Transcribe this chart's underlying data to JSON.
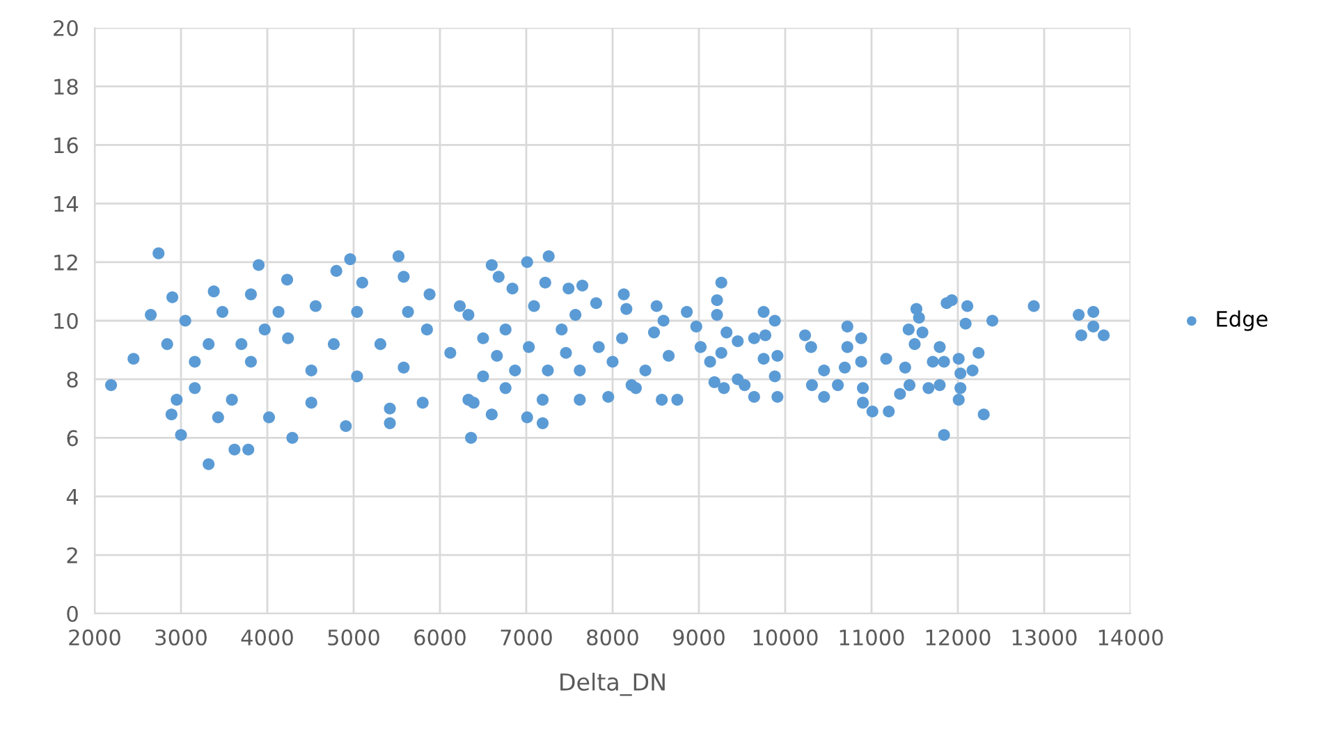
{
  "chart_data": {
    "type": "scatter",
    "xlabel": "Delta_DN",
    "xlim": [
      2000,
      14000
    ],
    "xticks": [
      2000,
      3000,
      4000,
      5000,
      6000,
      7000,
      8000,
      9000,
      10000,
      11000,
      12000,
      13000,
      14000
    ],
    "ylim": [
      0,
      20
    ],
    "yticks": [
      0,
      2,
      4,
      6,
      8,
      10,
      12,
      14,
      16,
      18,
      20
    ],
    "grid": true,
    "legend": "right",
    "marker": "circle",
    "series": [
      {
        "name": "Edge",
        "color": "#5b9bd5",
        "x": [
          10230,
          10300,
          10450,
          10310,
          10450,
          10720,
          10880,
          10720,
          10880,
          10690,
          10610,
          10900,
          10900,
          11010,
          11170,
          11200,
          11390,
          11330,
          11440,
          11520,
          11550,
          11430,
          11500,
          11590,
          11660,
          11790,
          11790,
          11710,
          11870,
          11930,
          11840,
          12010,
          12030,
          12030,
          12010,
          11840,
          12110,
          12090,
          12170,
          12240,
          12300,
          12400,
          12880,
          13400,
          13570,
          13570,
          13430,
          13690,
          6600,
          7010,
          7260,
          6680,
          6840,
          7220,
          7490,
          7650,
          7810,
          8130,
          8160,
          8510,
          8860,
          8970,
          9260,
          9210,
          9210,
          9320,
          9450,
          9750,
          9880,
          9640,
          9770,
          9750,
          9910,
          9450,
          9530,
          9640,
          9910,
          9880,
          9260,
          9020,
          9130,
          9180,
          9290,
          8750,
          8570,
          8270,
          7950,
          7620,
          7190,
          7010,
          7190,
          6600,
          6360,
          6390,
          6500,
          6760,
          7030,
          7410,
          7460,
          7840,
          8110,
          8480,
          8650,
          8380,
          8000,
          7620,
          6870,
          6500,
          6660,
          7250,
          6330,
          7090,
          7570,
          8590,
          8220,
          6330,
          6760,
          2740,
          3900,
          4230,
          4960,
          5520,
          2190,
          2450,
          2650,
          2840,
          2900,
          3000,
          2890,
          2950,
          3320,
          3620,
          3780,
          3380,
          3810,
          4800,
          5100,
          5580,
          5880,
          4290,
          4910,
          5420,
          3160,
          3810,
          3970,
          4240,
          4510,
          4770,
          5040,
          5310,
          5580,
          5850,
          6120,
          3590,
          4020,
          3430,
          4510,
          5420,
          5800,
          3160,
          4560,
          4130,
          3480,
          3050,
          5040,
          5630,
          6230,
          3700,
          3320
        ],
        "values": [
          9.5,
          9.1,
          8.3,
          7.8,
          7.4,
          9.8,
          9.4,
          9.1,
          8.6,
          8.4,
          7.8,
          7.7,
          7.2,
          6.9,
          8.7,
          6.9,
          8.4,
          7.5,
          7.8,
          10.4,
          10.1,
          9.7,
          9.2,
          9.6,
          7.7,
          7.8,
          9.1,
          8.6,
          10.6,
          10.7,
          8.6,
          8.7,
          8.2,
          7.7,
          7.3,
          6.1,
          10.5,
          9.9,
          8.3,
          8.9,
          6.8,
          10.0,
          10.5,
          10.2,
          10.3,
          9.8,
          9.5,
          9.5,
          11.9,
          12.0,
          12.2,
          11.5,
          11.1,
          11.3,
          11.1,
          11.2,
          10.6,
          10.9,
          10.4,
          10.5,
          10.3,
          9.8,
          11.3,
          10.7,
          10.2,
          9.6,
          9.3,
          10.3,
          10.0,
          9.4,
          9.5,
          8.7,
          8.8,
          8.0,
          7.8,
          7.4,
          7.4,
          8.1,
          8.9,
          9.1,
          8.6,
          7.9,
          7.7,
          7.3,
          7.3,
          7.7,
          7.4,
          7.3,
          7.3,
          6.7,
          6.5,
          6.8,
          6.0,
          7.2,
          9.4,
          9.7,
          9.1,
          9.7,
          8.9,
          9.1,
          9.4,
          9.6,
          8.8,
          8.3,
          8.6,
          8.3,
          8.3,
          8.1,
          8.8,
          8.3,
          10.2,
          10.5,
          10.2,
          10.0,
          7.8,
          7.3,
          7.7,
          12.3,
          11.9,
          11.4,
          12.1,
          12.2,
          7.8,
          8.7,
          10.2,
          9.2,
          10.8,
          6.1,
          6.8,
          7.3,
          5.1,
          5.6,
          5.6,
          11.0,
          10.9,
          11.7,
          11.3,
          11.5,
          10.9,
          6.0,
          6.4,
          6.5,
          8.6,
          8.6,
          9.7,
          9.4,
          8.3,
          9.2,
          8.1,
          9.2,
          8.4,
          9.7,
          8.9,
          7.3,
          6.7,
          6.7,
          7.2,
          7.0,
          7.2,
          7.7,
          10.5,
          10.3,
          10.3,
          10.0,
          10.3,
          10.3,
          10.5,
          9.2,
          9.2
        ]
      }
    ]
  }
}
